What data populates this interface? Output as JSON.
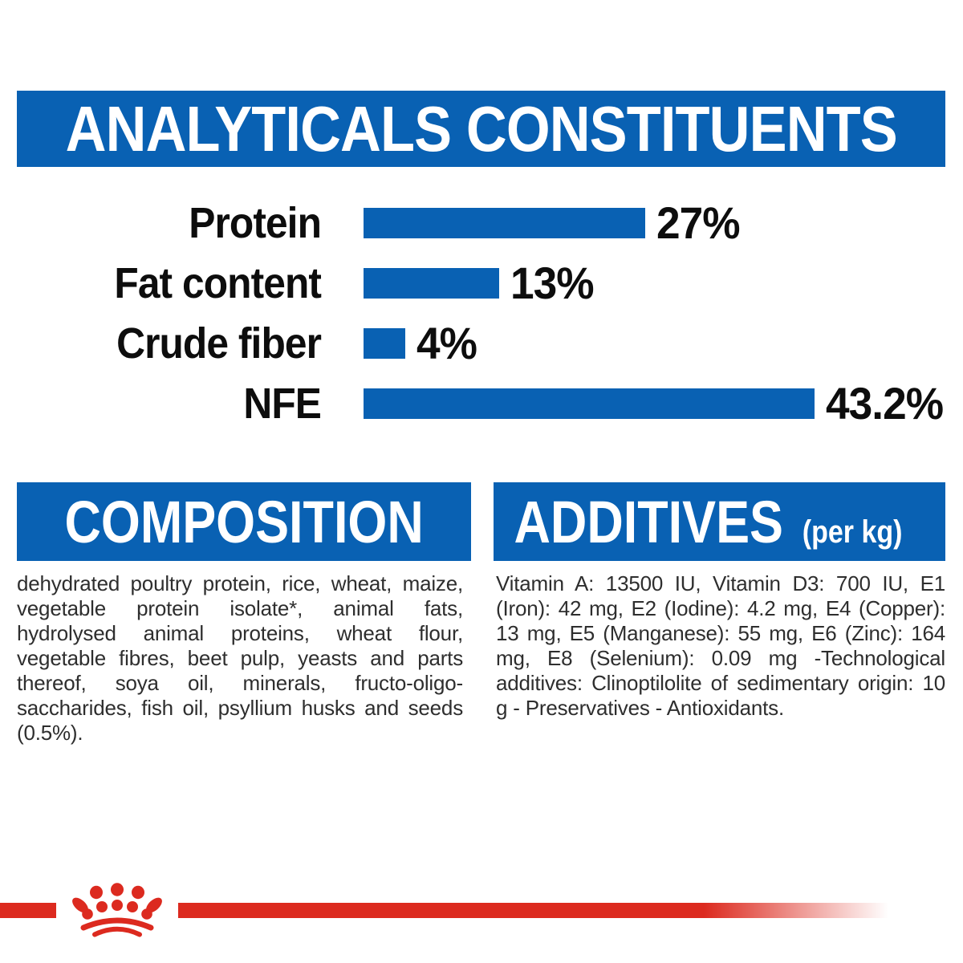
{
  "colors": {
    "blue": "#0961b3",
    "red": "#dc2a1f",
    "label_black": "#0d0d0d",
    "body_text": "#2e2e2e",
    "banner_text": "#ffffff"
  },
  "header": {
    "title": "ANALYTICALS CONSTITUENTS"
  },
  "chart_data": {
    "type": "bar",
    "orientation": "horizontal",
    "title": "ANALYTICALS CONSTITUENTS",
    "categories": [
      "Protein",
      "Fat content",
      "Crude fiber",
      "NFE"
    ],
    "values": [
      27,
      13,
      4,
      43.2
    ],
    "value_labels": [
      "27%",
      "13%",
      "4%",
      "43.2%"
    ],
    "unit": "%",
    "xlim": [
      0,
      45
    ],
    "bar_color": "#0961b3",
    "grid": false,
    "legend": false
  },
  "composition": {
    "title": "COMPOSITION",
    "body": "dehydrated poultry protein, rice, wheat, maize, vegetable protein isolate*, animal fats, hydrolysed animal proteins, wheat flour, vegetable fibres, beet pulp, yeasts and parts thereof, soya oil, minerals, fructo-oligo-saccharides, fish oil, psyllium husks and seeds (0.5%)."
  },
  "additives": {
    "title": "ADDITIVES",
    "unit": "(per kg)",
    "body": "Vitamin A: 13500 IU, Vitamin D3: 700 IU, E1 (Iron): 42 mg, E2 (Iodine): 4.2 mg, E4 (Copper): 13 mg, E5 (Manganese): 55 mg, E6 (Zinc): 164 mg, E8 (Selenium): 0.09 mg -Technological additives: Clinoptilolite of sedimentary origin: 10 g - Preservatives - Antioxidants."
  },
  "footer": {
    "brand_mark": "royal-canin-paw-crown",
    "line_color": "#dc2a1f"
  }
}
